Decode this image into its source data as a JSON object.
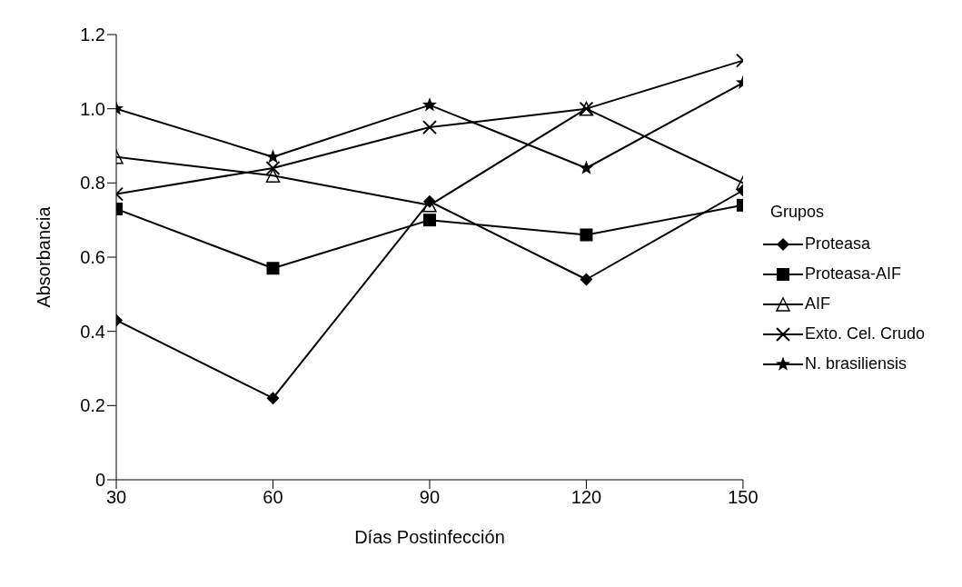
{
  "chart_data": {
    "type": "line",
    "xlabel": "Días Postinfección",
    "ylabel": "Absorbancia",
    "legend_title": "Grupos",
    "legend": "right",
    "grid": false,
    "line_style": "solid",
    "x": [
      30,
      60,
      90,
      120,
      150
    ],
    "xlim": [
      30,
      150
    ],
    "xticks": [
      30,
      60,
      90,
      120,
      150
    ],
    "ylim": [
      0,
      1.2
    ],
    "yticks": [
      0,
      0.2,
      0.4,
      0.6,
      0.8,
      {
        "value": 1,
        "label": "1.0"
      },
      1.2
    ],
    "series": [
      {
        "name": "Proteasa",
        "color": "#000000",
        "marker": "diamond",
        "values": [
          0.43,
          0.22,
          0.75,
          0.54,
          0.78
        ]
      },
      {
        "name": "Proteasa-AIF",
        "color": "#000000",
        "marker": "square",
        "values": [
          0.73,
          0.57,
          0.7,
          0.66,
          0.74
        ]
      },
      {
        "name": "AIF",
        "color": "#000000",
        "marker": "triangle",
        "values": [
          0.87,
          0.82,
          0.74,
          1.0,
          0.8
        ]
      },
      {
        "name": "Exto. Cel. Crudo",
        "color": "#000000",
        "marker": "cross",
        "values": [
          0.77,
          0.84,
          0.95,
          1.0,
          1.13
        ]
      },
      {
        "name": "N. brasiliensis",
        "color": "#000000",
        "marker": "star",
        "values": [
          1.0,
          0.87,
          1.01,
          0.84,
          1.07
        ]
      }
    ]
  }
}
